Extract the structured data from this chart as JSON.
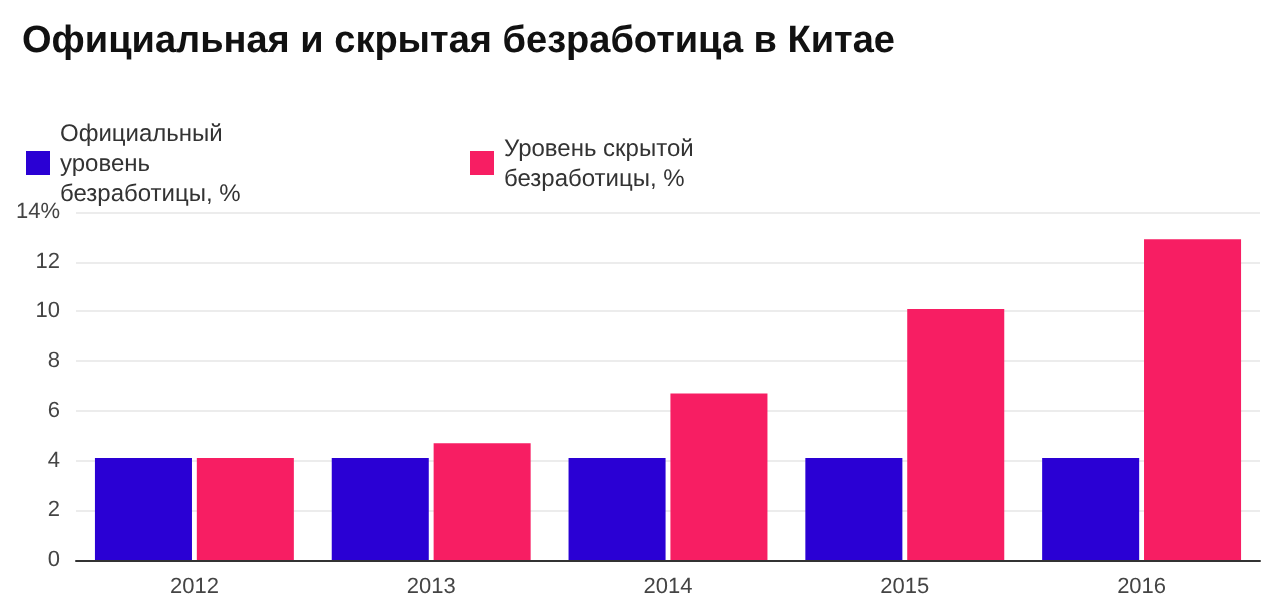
{
  "chart_data": {
    "type": "bar",
    "title": "Официальная и скрытая безработица в Китае",
    "categories": [
      "2012",
      "2013",
      "2014",
      "2015",
      "2016"
    ],
    "series": [
      {
        "name": "Официальный уровень безработицы, %",
        "color": "#2a00d4",
        "values": [
          4.1,
          4.1,
          4.1,
          4.1,
          4.1
        ]
      },
      {
        "name": "Уровень скрытой безработицы, %",
        "color": "#f71e63",
        "values": [
          4.1,
          4.7,
          6.7,
          10.1,
          12.9
        ]
      }
    ],
    "ylim": [
      0,
      14
    ],
    "yticks": [
      0,
      2,
      4,
      6,
      8,
      10,
      12,
      {
        "value": 14,
        "label": "14%"
      }
    ],
    "grid": "y",
    "legend": "top left"
  }
}
